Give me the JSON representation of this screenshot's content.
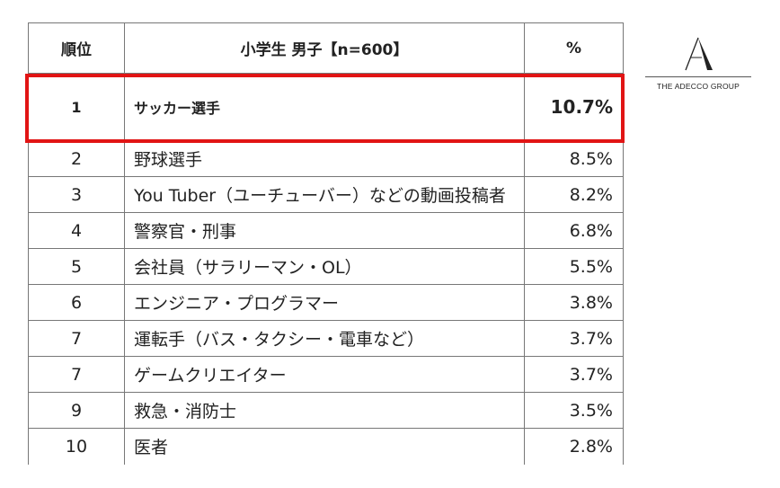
{
  "table": {
    "headers": {
      "rank": "順位",
      "category": "小学生 男子【n=600】",
      "percent": "%"
    },
    "rows": [
      {
        "rank": "1",
        "job": "サッカー選手",
        "percent": "10.7%"
      },
      {
        "rank": "2",
        "job": "野球選手",
        "percent": "8.5%"
      },
      {
        "rank": "3",
        "job": "You Tuber（ユーチューバー）などの動画投稿者",
        "percent": "8.2%"
      },
      {
        "rank": "4",
        "job": "警察官・刑事",
        "percent": "6.8%"
      },
      {
        "rank": "5",
        "job": "会社員（サラリーマン・OL）",
        "percent": "5.5%"
      },
      {
        "rank": "6",
        "job": "エンジニア・プログラマー",
        "percent": "3.8%"
      },
      {
        "rank": "7",
        "job": "運転手（バス・タクシー・電車など）",
        "percent": "3.7%"
      },
      {
        "rank": "7",
        "job": "ゲームクリエイター",
        "percent": "3.7%"
      },
      {
        "rank": "9",
        "job": "救急・消防士",
        "percent": "3.5%"
      },
      {
        "rank": "10",
        "job": "医者",
        "percent": "2.8%"
      }
    ]
  },
  "highlight": {
    "color": "#e11414"
  },
  "logo": {
    "text": "THE ADECCO GROUP",
    "icon": "adecco-a-logo-icon"
  }
}
